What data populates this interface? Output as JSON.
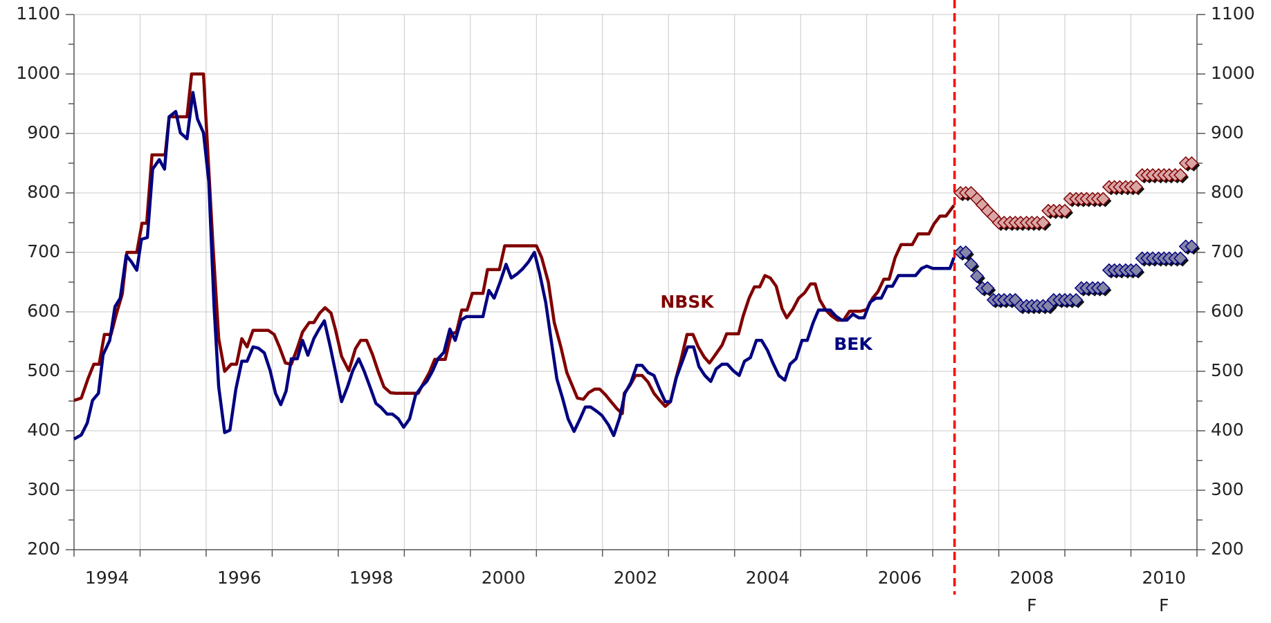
{
  "chart_data": {
    "type": "line",
    "xlim": [
      1994,
      2011
    ],
    "xticks": [
      {
        "value": 1994.5,
        "label": "1994"
      },
      {
        "value": 1996.5,
        "label": "1996"
      },
      {
        "value": 1998.5,
        "label": "1998"
      },
      {
        "value": 2000.5,
        "label": "2000"
      },
      {
        "value": 2002.5,
        "label": "2002"
      },
      {
        "value": 2004.5,
        "label": "2004"
      },
      {
        "value": 2006.5,
        "label": "2006"
      },
      {
        "value": 2008.5,
        "label": "2008"
      },
      {
        "value": 2010.5,
        "label": "2010"
      }
    ],
    "xgrid": [
      1995,
      1996,
      1997,
      1998,
      1999,
      2000,
      2001,
      2002,
      2003,
      2004,
      2005,
      2006,
      2007,
      2008,
      2009,
      2010
    ],
    "ylim": [
      200,
      1100
    ],
    "yticks": [
      200,
      300,
      400,
      500,
      600,
      700,
      800,
      900,
      1000,
      1100
    ],
    "yminor": [
      250,
      350,
      450,
      550,
      650,
      750,
      850,
      950,
      1050
    ],
    "y2lim": [
      200,
      1100
    ],
    "y2ticks": [
      200,
      300,
      400,
      500,
      600,
      700,
      800,
      900,
      1000,
      1100
    ],
    "grid": true,
    "annotations": [
      {
        "text": "F",
        "x": 2008.5
      },
      {
        "text": "F",
        "x": 2010.5
      }
    ],
    "vline": {
      "x": 2007.33,
      "color": "#ff0000",
      "style": "dashed"
    },
    "series": [
      {
        "name": "NBSK",
        "color": "#800000",
        "x": [
          1994.0,
          1994.11,
          1994.21,
          1994.3,
          1994.38,
          1994.46,
          1994.56,
          1994.64,
          1994.73,
          1994.8,
          1994.95,
          1995.03,
          1995.1,
          1995.18,
          1995.38,
          1995.44,
          1995.71,
          1995.78,
          1995.96,
          1996.1,
          1996.19,
          1996.28,
          1996.38,
          1996.46,
          1996.54,
          1996.62,
          1996.71,
          1996.79,
          1996.94,
          1997.03,
          1997.11,
          1997.2,
          1997.29,
          1997.38,
          1997.46,
          1997.56,
          1997.63,
          1997.72,
          1997.8,
          1997.89,
          1997.96,
          1998.05,
          1998.16,
          1998.26,
          1998.34,
          1998.43,
          1998.52,
          1998.6,
          1998.69,
          1998.79,
          1998.87,
          1999.21,
          1999.29,
          1999.38,
          1999.46,
          1999.62,
          1999.71,
          1999.79,
          1999.87,
          1999.95,
          2000.03,
          2000.19,
          2000.26,
          2000.44,
          2000.52,
          2001.0,
          2001.08,
          2001.18,
          2001.27,
          2001.37,
          2001.46,
          2001.55,
          2001.62,
          2001.71,
          2001.79,
          2001.88,
          2001.96,
          2002.05,
          2002.13,
          2002.22,
          2002.3,
          2002.33,
          2002.42,
          2002.5,
          2002.6,
          2002.69,
          2002.78,
          2002.86,
          2002.95,
          2003.03,
          2003.11,
          2003.19,
          2003.28,
          2003.37,
          2003.45,
          2003.54,
          2003.62,
          2003.71,
          2003.81,
          2003.88,
          2004.06,
          2004.13,
          2004.22,
          2004.3,
          2004.38,
          2004.46,
          2004.54,
          2004.63,
          2004.72,
          2004.79,
          2004.88,
          2004.97,
          2005.06,
          2005.15,
          2005.22,
          2005.29,
          2005.38,
          2005.47,
          2005.56,
          2005.65,
          2005.74,
          2005.91,
          2006.0,
          2006.09,
          2006.17,
          2006.26,
          2006.34,
          2006.43,
          2006.52,
          2006.69,
          2006.78,
          2006.94,
          2007.02,
          2007.11,
          2007.2,
          2007.32
        ],
        "values": [
          451,
          455,
          487,
          512,
          512,
          562,
          562,
          596,
          630,
          700,
          700,
          749,
          749,
          864,
          864,
          928,
          928,
          1000,
          1000,
          718,
          555,
          500,
          512,
          512,
          555,
          541,
          569,
          569,
          569,
          562,
          541,
          514,
          512,
          539,
          566,
          582,
          582,
          598,
          607,
          598,
          569,
          525,
          501,
          538,
          552,
          552,
          528,
          501,
          474,
          464,
          463,
          463,
          480,
          498,
          520,
          520,
          563,
          566,
          603,
          603,
          631,
          631,
          671,
          671,
          711,
          711,
          691,
          650,
          582,
          541,
          498,
          474,
          455,
          453,
          464,
          470,
          470,
          460,
          449,
          437,
          429,
          463,
          477,
          493,
          493,
          482,
          463,
          452,
          441,
          449,
          487,
          520,
          562,
          562,
          541,
          524,
          514,
          528,
          544,
          563,
          563,
          593,
          623,
          642,
          642,
          661,
          657,
          643,
          605,
          590,
          604,
          623,
          632,
          647,
          647,
          620,
          603,
          593,
          586,
          586,
          601,
          601,
          604,
          623,
          634,
          655,
          655,
          691,
          713,
          713,
          731,
          731,
          748,
          761,
          761,
          779
        ]
      },
      {
        "name": "BEK",
        "color": "#000080",
        "x": [
          1994.0,
          1994.11,
          1994.2,
          1994.28,
          1994.37,
          1994.44,
          1994.54,
          1994.62,
          1994.7,
          1994.79,
          1994.87,
          1994.95,
          1995.02,
          1995.11,
          1995.19,
          1995.29,
          1995.37,
          1995.44,
          1995.54,
          1995.61,
          1995.71,
          1995.8,
          1995.87,
          1995.96,
          1996.04,
          1996.12,
          1996.19,
          1996.28,
          1996.36,
          1996.45,
          1996.54,
          1996.62,
          1996.71,
          1996.79,
          1996.88,
          1996.97,
          1997.05,
          1997.13,
          1997.21,
          1997.29,
          1997.38,
          1997.46,
          1997.54,
          1997.63,
          1997.7,
          1997.79,
          1997.88,
          1997.96,
          1998.05,
          1998.14,
          1998.22,
          1998.31,
          1998.39,
          1998.48,
          1998.57,
          1998.65,
          1998.74,
          1998.82,
          1998.91,
          1998.99,
          1999.08,
          1999.17,
          1999.26,
          1999.34,
          1999.43,
          1999.51,
          1999.6,
          1999.69,
          1999.77,
          1999.86,
          1999.94,
          2000.02,
          2000.19,
          2000.28,
          2000.36,
          2000.45,
          2000.54,
          2000.62,
          2000.71,
          2000.79,
          2000.88,
          2000.97,
          2001.05,
          2001.14,
          2001.22,
          2001.31,
          2001.4,
          2001.48,
          2001.57,
          2001.66,
          2001.74,
          2001.82,
          2001.91,
          2001.99,
          2002.09,
          2002.17,
          2002.26,
          2002.34,
          2002.43,
          2002.52,
          2002.6,
          2002.69,
          2002.78,
          2002.86,
          2002.95,
          2003.03,
          2003.12,
          2003.21,
          2003.29,
          2003.38,
          2003.46,
          2003.55,
          2003.64,
          2003.72,
          2003.81,
          2003.89,
          2003.98,
          2004.07,
          2004.15,
          2004.24,
          2004.33,
          2004.41,
          2004.5,
          2004.58,
          2004.67,
          2004.76,
          2004.84,
          2004.93,
          2005.02,
          2005.1,
          2005.19,
          2005.27,
          2005.45,
          2005.53,
          2005.62,
          2005.7,
          2005.79,
          2005.88,
          2005.96,
          2006.05,
          2006.14,
          2006.22,
          2006.31,
          2006.39,
          2006.48,
          2006.74,
          2006.83,
          2006.91,
          2007.0,
          2007.26,
          2007.32
        ],
        "values": [
          386,
          393,
          413,
          451,
          463,
          528,
          552,
          609,
          623,
          695,
          684,
          670,
          722,
          725,
          840,
          856,
          840,
          928,
          937,
          901,
          891,
          969,
          924,
          901,
          819,
          609,
          474,
          397,
          401,
          470,
          517,
          517,
          541,
          539,
          531,
          501,
          463,
          444,
          467,
          521,
          521,
          552,
          527,
          555,
          569,
          585,
          541,
          498,
          449,
          474,
          501,
          521,
          501,
          474,
          446,
          439,
          428,
          428,
          420,
          406,
          420,
          460,
          474,
          483,
          501,
          521,
          532,
          571,
          552,
          586,
          592,
          592,
          592,
          636,
          623,
          650,
          680,
          657,
          664,
          672,
          684,
          700,
          664,
          616,
          555,
          487,
          453,
          420,
          399,
          420,
          440,
          440,
          433,
          426,
          410,
          392,
          422,
          463,
          481,
          510,
          510,
          498,
          493,
          471,
          449,
          449,
          490,
          517,
          541,
          541,
          508,
          493,
          483,
          504,
          512,
          512,
          501,
          493,
          517,
          523,
          552,
          552,
          535,
          514,
          493,
          485,
          512,
          521,
          552,
          552,
          582,
          603,
          603,
          593,
          586,
          586,
          596,
          590,
          590,
          616,
          623,
          623,
          643,
          643,
          661,
          661,
          673,
          677,
          673,
          673,
          691
        ]
      },
      {
        "color": "#d9a6a6",
        "edgecolor": "#800000",
        "marker": "diamond",
        "x": [
          2007.42,
          2007.5,
          2007.58,
          2007.67,
          2007.75,
          2007.83,
          2007.92,
          2008.0,
          2008.08,
          2008.17,
          2008.25,
          2008.33,
          2008.42,
          2008.5,
          2008.58,
          2008.67,
          2008.75,
          2008.83,
          2008.92,
          2009.0,
          2009.08,
          2009.17,
          2009.25,
          2009.33,
          2009.42,
          2009.5,
          2009.58,
          2009.67,
          2009.75,
          2009.83,
          2009.92,
          2010.0,
          2010.08,
          2010.17,
          2010.25,
          2010.33,
          2010.42,
          2010.5,
          2010.58,
          2010.67,
          2010.75,
          2010.83,
          2010.92
        ],
        "values": [
          800,
          800,
          800,
          790,
          780,
          770,
          760,
          750,
          750,
          750,
          750,
          750,
          750,
          750,
          750,
          750,
          770,
          770,
          770,
          770,
          790,
          790,
          790,
          790,
          790,
          790,
          790,
          810,
          810,
          810,
          810,
          810,
          810,
          830,
          830,
          830,
          830,
          830,
          830,
          830,
          830,
          850,
          850
        ]
      },
      {
        "color": "#8585a6",
        "edgecolor": "#000080",
        "marker": "diamond",
        "x": [
          2007.42,
          2007.5,
          2007.58,
          2007.67,
          2007.75,
          2007.83,
          2007.92,
          2008.0,
          2008.08,
          2008.17,
          2008.25,
          2008.33,
          2008.42,
          2008.5,
          2008.58,
          2008.67,
          2008.75,
          2008.83,
          2008.92,
          2009.0,
          2009.08,
          2009.17,
          2009.25,
          2009.33,
          2009.42,
          2009.5,
          2009.58,
          2009.67,
          2009.75,
          2009.83,
          2009.92,
          2010.0,
          2010.08,
          2010.17,
          2010.25,
          2010.33,
          2010.42,
          2010.5,
          2010.58,
          2010.67,
          2010.75,
          2010.83,
          2010.92
        ],
        "values": [
          700,
          700,
          680,
          660,
          640,
          640,
          620,
          620,
          620,
          620,
          620,
          610,
          610,
          610,
          610,
          610,
          610,
          620,
          620,
          620,
          620,
          620,
          640,
          640,
          640,
          640,
          640,
          670,
          670,
          670,
          670,
          670,
          670,
          690,
          690,
          690,
          690,
          690,
          690,
          690,
          690,
          710,
          710
        ]
      }
    ]
  }
}
